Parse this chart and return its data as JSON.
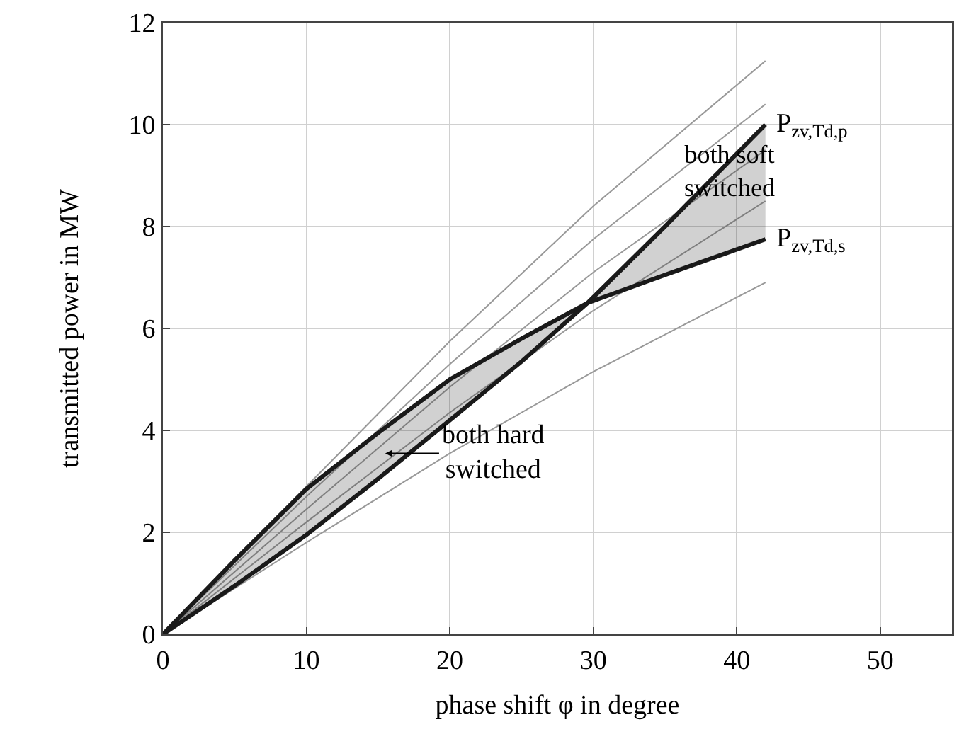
{
  "chart_data": {
    "type": "line",
    "xlabel": "phase shift φ in degree",
    "ylabel": "transmitted power in MW",
    "xlim": [
      0,
      55
    ],
    "xticks": [
      0,
      10,
      20,
      30,
      40,
      50
    ],
    "ylim": [
      0,
      12
    ],
    "yticks": [
      0,
      2,
      4,
      6,
      8,
      10,
      12
    ],
    "grid": true,
    "legend": false,
    "line_style": "solid",
    "marker": "none",
    "series": [
      {
        "color": "#999999",
        "x": [
          0,
          10,
          20,
          30,
          42
        ],
        "values": [
          0,
          2.9,
          5.75,
          8.4,
          11.25
        ]
      },
      {
        "color": "#999999",
        "x": [
          0,
          10,
          20,
          30,
          42
        ],
        "values": [
          0,
          2.7,
          5.3,
          7.75,
          10.4
        ]
      },
      {
        "color": "#999999",
        "x": [
          0,
          10,
          20,
          30,
          42
        ],
        "values": [
          0,
          2.45,
          4.85,
          7.1,
          9.5
        ]
      },
      {
        "color": "#999999",
        "x": [
          0,
          10,
          20,
          30,
          42
        ],
        "values": [
          0,
          2.2,
          4.35,
          6.35,
          8.5
        ]
      },
      {
        "color": "#999999",
        "x": [
          0,
          10,
          20,
          30,
          42
        ],
        "values": [
          0,
          1.8,
          3.55,
          5.15,
          6.9
        ]
      },
      {
        "name": "P$_{zv,Td,s}$",
        "color": "#1a1a1a",
        "x": [
          0,
          5,
          10,
          15,
          20,
          25,
          29.6,
          35,
          42
        ],
        "values": [
          0,
          1.45,
          2.85,
          3.95,
          5.0,
          5.8,
          6.5,
          7.05,
          7.75
        ],
        "lower": [
          0,
          0.95,
          1.95,
          3.05,
          4.2,
          5.35,
          6.5,
          null,
          null
        ],
        "upper": [
          0,
          1.45,
          2.85,
          3.95,
          5.0,
          5.8,
          6.5,
          null,
          null
        ]
      },
      {
        "name": "P$_{zv,Td,p}$",
        "color": "#1a1a1a",
        "x": [
          0,
          5,
          10,
          15,
          20,
          25,
          29.6,
          35,
          42
        ],
        "values": [
          0,
          0.95,
          1.95,
          3.05,
          4.2,
          5.35,
          6.5,
          8.0,
          10.0
        ],
        "lower": [
          null,
          null,
          null,
          null,
          null,
          null,
          6.5,
          7.05,
          7.75
        ],
        "upper": [
          null,
          null,
          null,
          null,
          null,
          null,
          6.5,
          8.0,
          10.0
        ]
      }
    ],
    "annotations": [
      {
        "text": "both hard\nswitched",
        "x": 15.5,
        "y": 3.55
      },
      {
        "text": "both soft\nswitched",
        "x": 39.5,
        "y": 9.1
      }
    ]
  }
}
